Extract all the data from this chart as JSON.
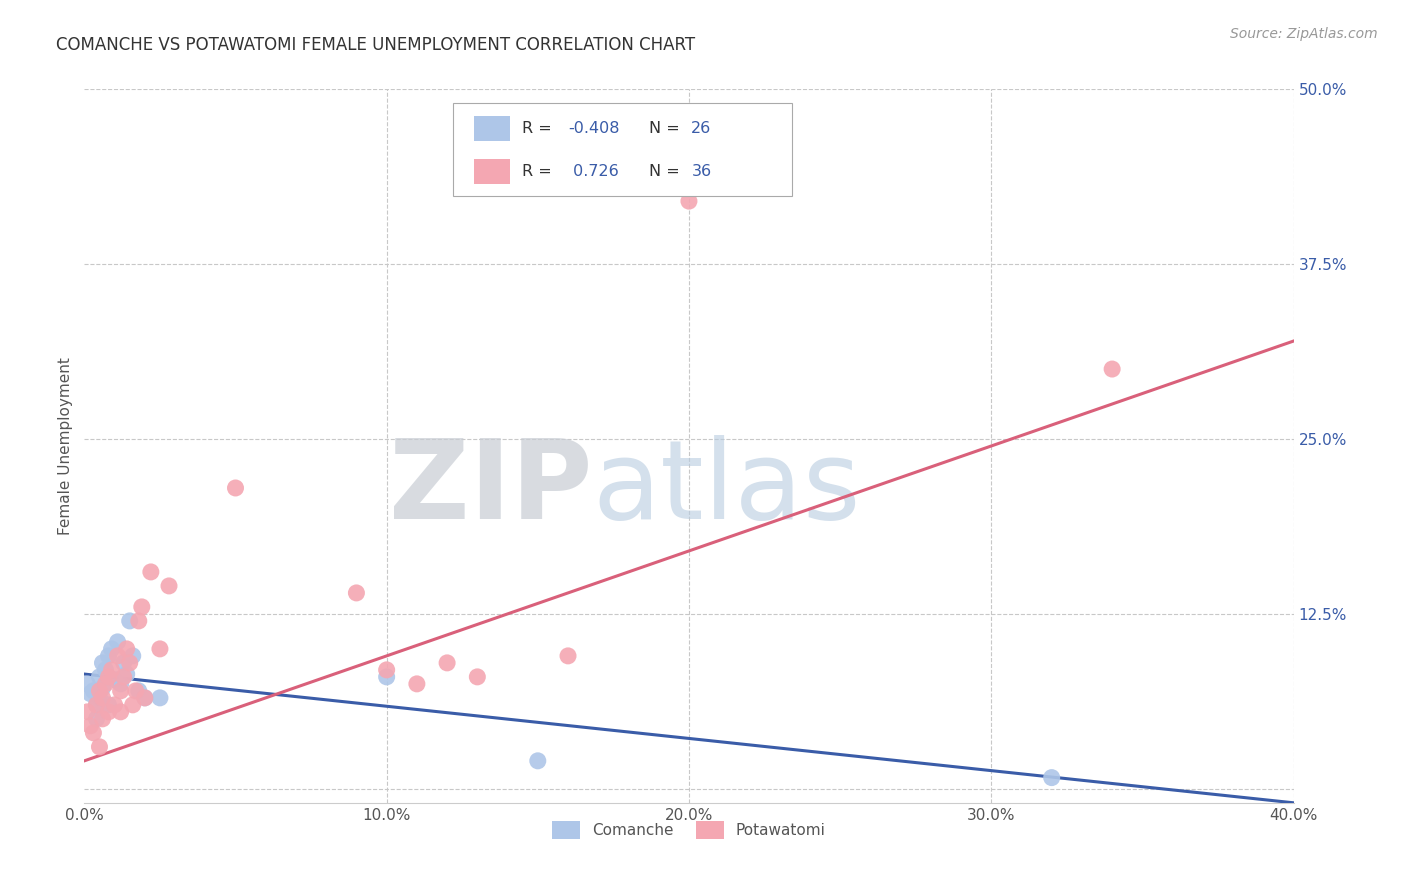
{
  "title": "COMANCHE VS POTAWATOMI FEMALE UNEMPLOYMENT CORRELATION CHART",
  "source": "Source: ZipAtlas.com",
  "ylabel": "Female Unemployment",
  "xlabel": "",
  "xlim": [
    0.0,
    0.4
  ],
  "ylim": [
    -0.01,
    0.5
  ],
  "xticks": [
    0.0,
    0.1,
    0.2,
    0.3,
    0.4
  ],
  "yticks": [
    0.0,
    0.125,
    0.25,
    0.375,
    0.5
  ],
  "xtick_labels": [
    "0.0%",
    "10.0%",
    "20.0%",
    "30.0%",
    "40.0%"
  ],
  "ytick_labels": [
    "",
    "12.5%",
    "25.0%",
    "37.5%",
    "50.0%"
  ],
  "background_color": "#ffffff",
  "grid_color": "#c8c8c8",
  "comanche_color": "#aec6e8",
  "potawatomi_color": "#f4a7b2",
  "comanche_line_color": "#3a5ca8",
  "potawatomi_line_color": "#d9607a",
  "legend_R1": "-0.408",
  "legend_N1": "26",
  "legend_R2": "0.726",
  "legend_N2": "36",
  "watermark_zip": "ZIP",
  "watermark_atlas": "atlas",
  "comanche_x": [
    0.001,
    0.002,
    0.003,
    0.004,
    0.004,
    0.005,
    0.005,
    0.006,
    0.006,
    0.007,
    0.008,
    0.008,
    0.009,
    0.01,
    0.011,
    0.012,
    0.013,
    0.014,
    0.015,
    0.016,
    0.018,
    0.02,
    0.025,
    0.1,
    0.15,
    0.32
  ],
  "comanche_y": [
    0.075,
    0.068,
    0.07,
    0.06,
    0.05,
    0.08,
    0.065,
    0.09,
    0.072,
    0.085,
    0.095,
    0.06,
    0.1,
    0.078,
    0.105,
    0.075,
    0.09,
    0.082,
    0.12,
    0.095,
    0.07,
    0.065,
    0.065,
    0.08,
    0.02,
    0.008
  ],
  "potawatomi_x": [
    0.001,
    0.002,
    0.003,
    0.004,
    0.005,
    0.005,
    0.006,
    0.006,
    0.007,
    0.008,
    0.008,
    0.009,
    0.01,
    0.011,
    0.012,
    0.012,
    0.013,
    0.014,
    0.015,
    0.016,
    0.017,
    0.018,
    0.019,
    0.02,
    0.022,
    0.025,
    0.028,
    0.05,
    0.09,
    0.1,
    0.11,
    0.12,
    0.13,
    0.16,
    0.2,
    0.34
  ],
  "potawatomi_y": [
    0.055,
    0.045,
    0.04,
    0.06,
    0.03,
    0.07,
    0.05,
    0.065,
    0.075,
    0.055,
    0.08,
    0.085,
    0.06,
    0.095,
    0.055,
    0.07,
    0.08,
    0.1,
    0.09,
    0.06,
    0.07,
    0.12,
    0.13,
    0.065,
    0.155,
    0.1,
    0.145,
    0.215,
    0.14,
    0.085,
    0.075,
    0.09,
    0.08,
    0.095,
    0.42,
    0.3
  ],
  "comanche_line_x": [
    0.0,
    0.4
  ],
  "comanche_line_y": [
    0.082,
    -0.01
  ],
  "potawatomi_line_x": [
    0.0,
    0.4
  ],
  "potawatomi_line_y": [
    0.02,
    0.32
  ]
}
